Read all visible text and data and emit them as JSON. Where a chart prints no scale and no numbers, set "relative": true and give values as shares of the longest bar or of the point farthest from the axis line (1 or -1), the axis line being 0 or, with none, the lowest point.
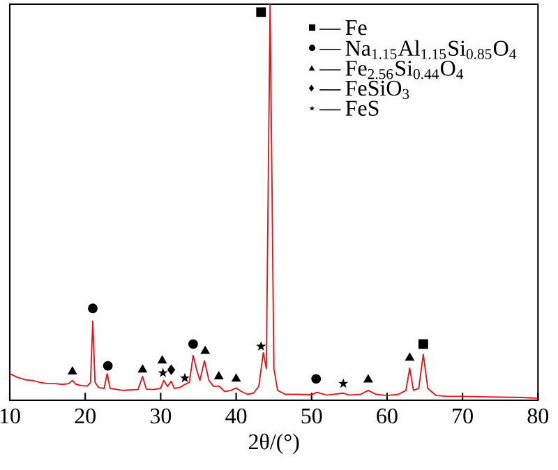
{
  "chart_data": {
    "type": "line",
    "xlabel": "2θ/(°)",
    "relative": true,
    "xlim": [
      10,
      80
    ],
    "xticks": [
      10,
      20,
      30,
      40,
      50,
      60,
      70,
      80
    ],
    "tick_labels": "x",
    "grid": false,
    "legend": "top right",
    "series": [
      {
        "color": "#e8141c",
        "marker": "none",
        "x": [
          10,
          11,
          12,
          13,
          14,
          15,
          16,
          17,
          17.8,
          18.3,
          18.8,
          19.5,
          20.3,
          20.7,
          21.0,
          21.3,
          21.8,
          22.5,
          22.9,
          23.3,
          24,
          25,
          26,
          27,
          27.6,
          28.1,
          29,
          30,
          30.4,
          30.9,
          31.4,
          31.8,
          32.5,
          33.2,
          33.8,
          34.3,
          34.8,
          35.2,
          35.8,
          36.4,
          37,
          37.7,
          38.5,
          39.3,
          40,
          40.7,
          41.5,
          42.3,
          43,
          43.6,
          44.0,
          44.5,
          45.0,
          45.5,
          46.5,
          48,
          50,
          50.7,
          52,
          54.2,
          55,
          56.5,
          57.5,
          58.5,
          60,
          61.5,
          62.5,
          63.0,
          63.5,
          64.2,
          64.8,
          65.4,
          66.5,
          68,
          70,
          72,
          75,
          78,
          80
        ],
        "values": [
          0.067,
          0.058,
          0.052,
          0.05,
          0.045,
          0.042,
          0.042,
          0.04,
          0.042,
          0.05,
          0.04,
          0.037,
          0.036,
          0.045,
          0.2,
          0.045,
          0.032,
          0.03,
          0.067,
          0.03,
          0.028,
          0.025,
          0.026,
          0.027,
          0.06,
          0.028,
          0.027,
          0.03,
          0.05,
          0.035,
          0.048,
          0.03,
          0.032,
          0.04,
          0.045,
          0.113,
          0.075,
          0.05,
          0.1,
          0.05,
          0.035,
          0.036,
          0.022,
          0.025,
          0.031,
          0.022,
          0.015,
          0.018,
          0.035,
          0.12,
          0.08,
          1.0,
          0.08,
          0.025,
          0.015,
          0.015,
          0.014,
          0.02,
          0.013,
          0.018,
          0.013,
          0.015,
          0.025,
          0.015,
          0.012,
          0.015,
          0.025,
          0.081,
          0.025,
          0.03,
          0.116,
          0.03,
          0.012,
          0.01,
          0.01,
          0.009,
          0.008,
          0.007,
          0.005
        ]
      },
      {
        "type": "scatter",
        "name": "Fe",
        "color": "#000000",
        "marker": "square",
        "x": [
          43.3,
          64.8
        ],
        "values": [
          0.98,
          0.142
        ]
      },
      {
        "type": "scatter",
        "name": "Na$_{1.15}$Al$_{1.15}$Si$_{0.85}$O$_{4}$",
        "color": "#000000",
        "marker": "circle",
        "x": [
          21.0,
          23.0,
          34.3,
          50.6
        ],
        "values": [
          0.232,
          0.087,
          0.142,
          0.054
        ]
      },
      {
        "type": "scatter",
        "name": "Fe$_{2.56}$Si$_{0.44}$O$_{4}$",
        "color": "#000000",
        "marker": "triangle",
        "x": [
          18.3,
          27.6,
          30.2,
          35.9,
          37.7,
          40.0,
          57.5,
          63.0
        ],
        "values": [
          0.072,
          0.077,
          0.1,
          0.124,
          0.06,
          0.054,
          0.052,
          0.107
        ]
      },
      {
        "type": "scatter",
        "name": "FeSiO$_{3}$",
        "color": "#000000",
        "marker": "diamond",
        "x": [
          31.4
        ],
        "values": [
          0.077
        ]
      },
      {
        "type": "scatter",
        "name": "FeS",
        "color": "#000000",
        "marker": "star",
        "x": [
          30.3,
          33.2,
          43.3,
          54.2
        ],
        "values": [
          0.069,
          0.056,
          0.136,
          0.042
        ]
      }
    ]
  }
}
